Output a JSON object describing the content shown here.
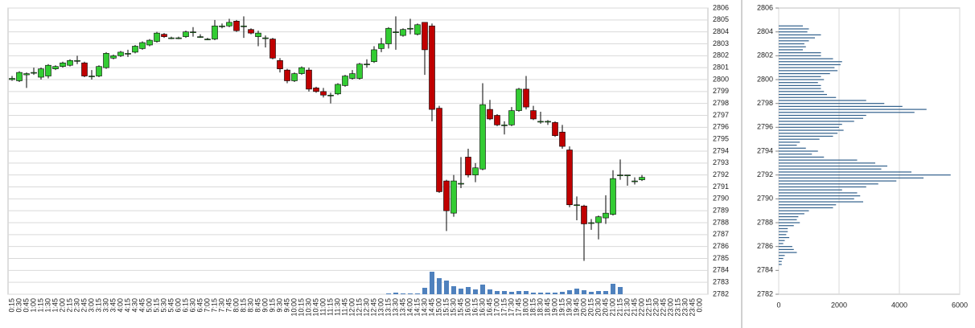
{
  "chart_data": [
    {
      "type": "candlestick",
      "categories": [
        "0:15",
        "0:30",
        "0:45",
        "1:00",
        "1:15",
        "1:30",
        "1:45",
        "2:00",
        "2:15",
        "2:30",
        "2:45",
        "3:00",
        "3:15",
        "3:30",
        "3:45",
        "4:00",
        "4:15",
        "4:30",
        "4:45",
        "5:00",
        "5:15",
        "5:30",
        "5:45",
        "6:00",
        "6:15",
        "6:30",
        "6:45",
        "7:00",
        "7:15",
        "7:30",
        "7:45",
        "8:00",
        "8:15",
        "8:30",
        "8:45",
        "9:00",
        "9:15",
        "9:30",
        "9:45",
        "10:00",
        "10:15",
        "10:30",
        "10:45",
        "11:00",
        "11:15",
        "11:30",
        "11:45",
        "12:00",
        "12:15",
        "12:30",
        "12:45",
        "13:00",
        "13:15",
        "13:30",
        "13:45",
        "14:00",
        "14:15",
        "14:30",
        "14:45",
        "15:00",
        "15:15",
        "15:30",
        "15:45",
        "16:00",
        "16:15",
        "16:30",
        "16:45",
        "17:00",
        "17:15",
        "17:30",
        "17:45",
        "18:00",
        "18:15",
        "18:30",
        "18:45",
        "19:00",
        "19:15",
        "19:30",
        "19:45",
        "20:00",
        "20:15",
        "20:30",
        "20:45",
        "21:00",
        "21:15",
        "21:30",
        "21:45",
        "22:00",
        "22:15",
        "22:30",
        "22:45",
        "23:00",
        "23:15",
        "23:30",
        "23:45",
        "0:00"
      ],
      "open": [
        2800,
        2799.9,
        2800.4,
        2800.6,
        2800.2,
        2800.3,
        2800.9,
        2801.1,
        2801.2,
        2801.6,
        2801.4,
        2800.3,
        2800.3,
        2801,
        2801.8,
        2802,
        2802.2,
        2802.3,
        2802.6,
        2802.9,
        2803.2,
        2803.8,
        2803.5,
        2803.5,
        2803.6,
        2804,
        2803.6,
        2803.4,
        2803.4,
        2804.5,
        2804.5,
        2804.9,
        2804.5,
        2804.2,
        2803.6,
        2803.5,
        2803.4,
        2801.6,
        2800.8,
        2799.9,
        2800.5,
        2800.8,
        2799.3,
        2799,
        2798.7,
        2798.8,
        2799.5,
        2800.1,
        2800.1,
        2801.3,
        2801.5,
        2802.6,
        2803,
        2804,
        2803.7,
        2804.3,
        2803.8,
        2804.8,
        2804.5,
        2797.6,
        2791.5,
        2788.8,
        2791.3,
        2793.5,
        2792,
        2792.5,
        2797.5,
        2797,
        2796.2,
        2796.2,
        2797.4,
        2799.2,
        2797.4,
        2796.5,
        2796.5,
        2796.4,
        2795.6,
        2794.1,
        2789.5,
        2789.4,
        2788,
        2788,
        2788.4,
        2788.7,
        2792,
        2792,
        2791.5,
        2791.6,
        null,
        null,
        null,
        null,
        null,
        null,
        null,
        null
      ],
      "high": [
        2800.3,
        2800.7,
        2800.6,
        2801,
        2801,
        2801.3,
        2801.2,
        2801.5,
        2801.7,
        2802,
        2801.5,
        2800.8,
        2801.2,
        2802.3,
        2802.1,
        2802.4,
        2802.5,
        2802.9,
        2803.2,
        2803.4,
        2804,
        2803.9,
        2803.6,
        2803.6,
        2804.1,
        2804.4,
        2803.8,
        2803.5,
        2805,
        2804.7,
        2805.1,
        2805,
        2805.3,
        2804.3,
        2804.1,
        2803.7,
        2803.5,
        2801.8,
        2800.9,
        2800.6,
        2801.1,
        2801,
        2799.4,
        2799.3,
        2798.9,
        2799.7,
        2800.4,
        2800.8,
        2801.4,
        2801.7,
        2802.8,
        2803.5,
        2804.4,
        2805.3,
        2804.3,
        2805.1,
        2804.7,
        2804.8,
        2804.7,
        2797.8,
        2791.6,
        2792,
        2793.5,
        2794.2,
        2793,
        2799.7,
        2798.3,
        2797.1,
        2796.5,
        2797.7,
        2799.3,
        2800.3,
        2797.8,
        2797.3,
        2796.6,
        2796.5,
        2796.2,
        2794.4,
        2790.2,
        2789.5,
        2788.3,
        2788.6,
        2790.3,
        2792.4,
        2793.3,
        2792,
        2791.8,
        2792,
        null,
        null,
        null,
        null,
        null,
        null,
        null,
        null
      ],
      "low": [
        2799.9,
        2799.8,
        2799.3,
        2800.4,
        2800,
        2800.1,
        2800.8,
        2801,
        2801.1,
        2801.3,
        2800.2,
        2800,
        2800.2,
        2800.9,
        2801.7,
        2801.9,
        2801.9,
        2802.2,
        2802.5,
        2802.8,
        2803.1,
        2803.5,
        2803.4,
        2803.4,
        2803.5,
        2803.6,
        2803.5,
        2803.3,
        2803.3,
        2804.3,
        2804.4,
        2804,
        2803.5,
        2803.8,
        2802.8,
        2802.7,
        2801.7,
        2800.6,
        2799.7,
        2799.8,
        2800.4,
        2799,
        2798.9,
        2798.5,
        2798,
        2798.7,
        2799.4,
        2800,
        2800,
        2801,
        2801.4,
        2802.3,
        2802.6,
        2802.5,
        2803.6,
        2803.8,
        2803.7,
        2800.4,
        2796.5,
        2790.5,
        2787.3,
        2788.5,
        2790.9,
        2791.8,
        2791.4,
        2792.4,
        2796.6,
        2796.1,
        2795.4,
        2796.1,
        2797.3,
        2797.5,
        2796.6,
        2796.3,
        2796.2,
        2795.2,
        2794.2,
        2789.3,
        2788.2,
        2784.8,
        2787.4,
        2786.6,
        2787.9,
        2788.6,
        2791.6,
        2791.1,
        2791.2,
        2791.5,
        null,
        null,
        null,
        null,
        null,
        null,
        null,
        null
      ],
      "close": [
        2800.1,
        2800.6,
        2800.5,
        2800.6,
        2800.9,
        2801.2,
        2801.1,
        2801.4,
        2801.6,
        2801.6,
        2800.3,
        2800.3,
        2801.1,
        2802.2,
        2802,
        2802.3,
        2802.2,
        2802.8,
        2803.1,
        2803.3,
        2803.9,
        2803.6,
        2803.5,
        2803.5,
        2804,
        2804,
        2803.6,
        2803.4,
        2804.5,
        2804.5,
        2804.8,
        2804.1,
        2804.5,
        2803.9,
        2803.9,
        2803.5,
        2801.8,
        2800.9,
        2799.9,
        2800.5,
        2801,
        2799.2,
        2799,
        2798.7,
        2798.7,
        2799.6,
        2800.3,
        2800.5,
        2801.3,
        2801.3,
        2802.5,
        2803,
        2804.3,
        2804,
        2804.2,
        2804.3,
        2804.6,
        2802.5,
        2797.5,
        2790.6,
        2789,
        2791.5,
        2791.3,
        2792,
        2792.6,
        2797.9,
        2796.7,
        2796.2,
        2796.2,
        2797.4,
        2799.2,
        2797.7,
        2796.7,
        2796.5,
        2796.5,
        2795.3,
        2794.4,
        2789.5,
        2789.5,
        2787.9,
        2788,
        2788.5,
        2788.8,
        2791.7,
        2792,
        2792,
        2791.5,
        2791.8,
        null,
        null,
        null,
        null,
        null,
        null,
        null,
        null
      ],
      "volume": [
        null,
        null,
        null,
        null,
        null,
        null,
        null,
        null,
        null,
        null,
        null,
        null,
        null,
        null,
        null,
        null,
        null,
        null,
        null,
        null,
        null,
        null,
        null,
        null,
        null,
        null,
        null,
        null,
        null,
        null,
        null,
        null,
        null,
        null,
        null,
        null,
        null,
        null,
        null,
        null,
        null,
        null,
        null,
        null,
        null,
        null,
        null,
        null,
        null,
        null,
        null,
        null,
        1,
        2,
        1,
        1,
        1,
        8,
        28,
        20,
        17,
        10,
        7,
        9,
        6,
        12,
        6,
        4,
        4,
        3,
        4,
        4,
        2,
        2,
        2,
        2,
        3,
        5,
        7,
        5,
        3,
        4,
        4,
        13,
        9,
        null,
        null,
        null,
        null,
        null,
        null,
        null,
        null,
        null,
        null,
        null
      ],
      "up_color": "#33cc33",
      "down_color": "#c00000",
      "volume_color": "#4f81bd",
      "ylim": [
        2782,
        2806
      ],
      "yticks": [
        2782,
        2783,
        2784,
        2785,
        2786,
        2787,
        2788,
        2789,
        2790,
        2791,
        2792,
        2793,
        2794,
        2795,
        2796,
        2797,
        2798,
        2799,
        2800,
        2801,
        2802,
        2803,
        2804,
        2805,
        2806
      ],
      "grid": true
    },
    {
      "type": "barh",
      "y": [
        2804.5,
        2804.25,
        2804,
        2803.75,
        2803.5,
        2803.25,
        2803,
        2802.75,
        2802.5,
        2802.25,
        2802,
        2801.75,
        2801.5,
        2801.25,
        2801,
        2800.75,
        2800.5,
        2800.25,
        2800,
        2799.75,
        2799.5,
        2799.25,
        2799,
        2798.75,
        2798.5,
        2798.25,
        2798,
        2797.75,
        2797.5,
        2797.25,
        2797,
        2796.75,
        2796.5,
        2796.25,
        2796,
        2795.75,
        2795.5,
        2795.25,
        2795,
        2794.75,
        2794.5,
        2794.25,
        2794,
        2793.75,
        2793.5,
        2793.25,
        2793,
        2792.75,
        2792.5,
        2792.25,
        2792,
        2791.75,
        2791.5,
        2791.25,
        2791,
        2790.75,
        2790.5,
        2790.25,
        2790,
        2789.75,
        2789.5,
        2789.25,
        2789,
        2788.75,
        2788.5,
        2788.25,
        2788,
        2787.75,
        2787.5,
        2787.25,
        2787,
        2786.75,
        2786.5,
        2786.25,
        2786,
        2785.75,
        2785.5,
        2785.25,
        2785,
        2784.75,
        2784.5
      ],
      "values": [
        800,
        1000,
        950,
        1400,
        1200,
        1000,
        850,
        900,
        800,
        1400,
        1400,
        1800,
        2100,
        2050,
        1850,
        1950,
        1700,
        1400,
        1500,
        1300,
        1400,
        1400,
        1500,
        1600,
        1900,
        2900,
        3500,
        4100,
        4900,
        4500,
        2900,
        2800,
        2500,
        2100,
        2000,
        2150,
        1950,
        1800,
        1350,
        700,
        600,
        900,
        1300,
        1100,
        1500,
        2600,
        3200,
        3600,
        3400,
        4400,
        5700,
        4800,
        3900,
        3300,
        2900,
        2100,
        2600,
        2700,
        2500,
        2800,
        1900,
        1800,
        1000,
        850,
        650,
        600,
        700,
        500,
        300,
        300,
        250,
        350,
        200,
        150,
        450,
        500,
        600,
        200,
        150,
        100,
        100
      ],
      "color": "#31608c",
      "xlim": [
        0,
        6000
      ],
      "xticks": [
        0,
        2000,
        4000,
        6000
      ],
      "ylim": [
        2782,
        2806
      ],
      "yticks": [
        2782,
        2784,
        2786,
        2788,
        2790,
        2792,
        2794,
        2796,
        2798,
        2800,
        2802,
        2804,
        2806
      ],
      "grid": true
    }
  ]
}
